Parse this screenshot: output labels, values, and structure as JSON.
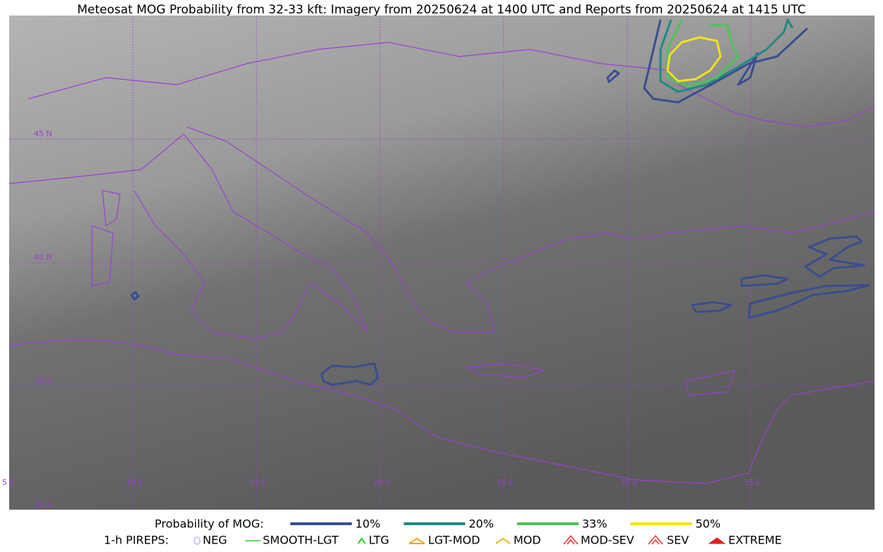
{
  "title": "Meteosat MOG Probability from 32-33 kft: Imagery from 20250624 at 1400 UTC and Reports from 20250624 at 1415 UTC",
  "map": {
    "lat_labels": [
      "45 N",
      "40 N",
      "35 N",
      "30 N"
    ],
    "lon_labels": [
      "5 E",
      "10 E",
      "15 E",
      "20 E",
      "25 E",
      "30 E",
      "35 E"
    ]
  },
  "legend": {
    "probability": {
      "label": "Probability of MOG:",
      "items": [
        {
          "label": "10%",
          "color": "#3a4d8f"
        },
        {
          "label": "20%",
          "color": "#1f8a80"
        },
        {
          "label": "33%",
          "color": "#4cc35a"
        },
        {
          "label": "50%",
          "color": "#f4e01e"
        }
      ]
    },
    "pireps": {
      "label": "1-h PIREPS:",
      "items": [
        {
          "label": "NEG",
          "color": "#b4b4ff"
        },
        {
          "label": "SMOOTH-LGT",
          "color": "#33cc33"
        },
        {
          "label": "LTG",
          "color": "#1edc1e"
        },
        {
          "label": "LGT-MOD",
          "color": "#f0a81e"
        },
        {
          "label": "MOD",
          "color": "#f0b41e"
        },
        {
          "label": "MOD-SEV",
          "color": "#e43030"
        },
        {
          "label": "SEV",
          "color": "#e43030"
        },
        {
          "label": "EXTREME",
          "color": "#e41e1e"
        }
      ]
    }
  }
}
